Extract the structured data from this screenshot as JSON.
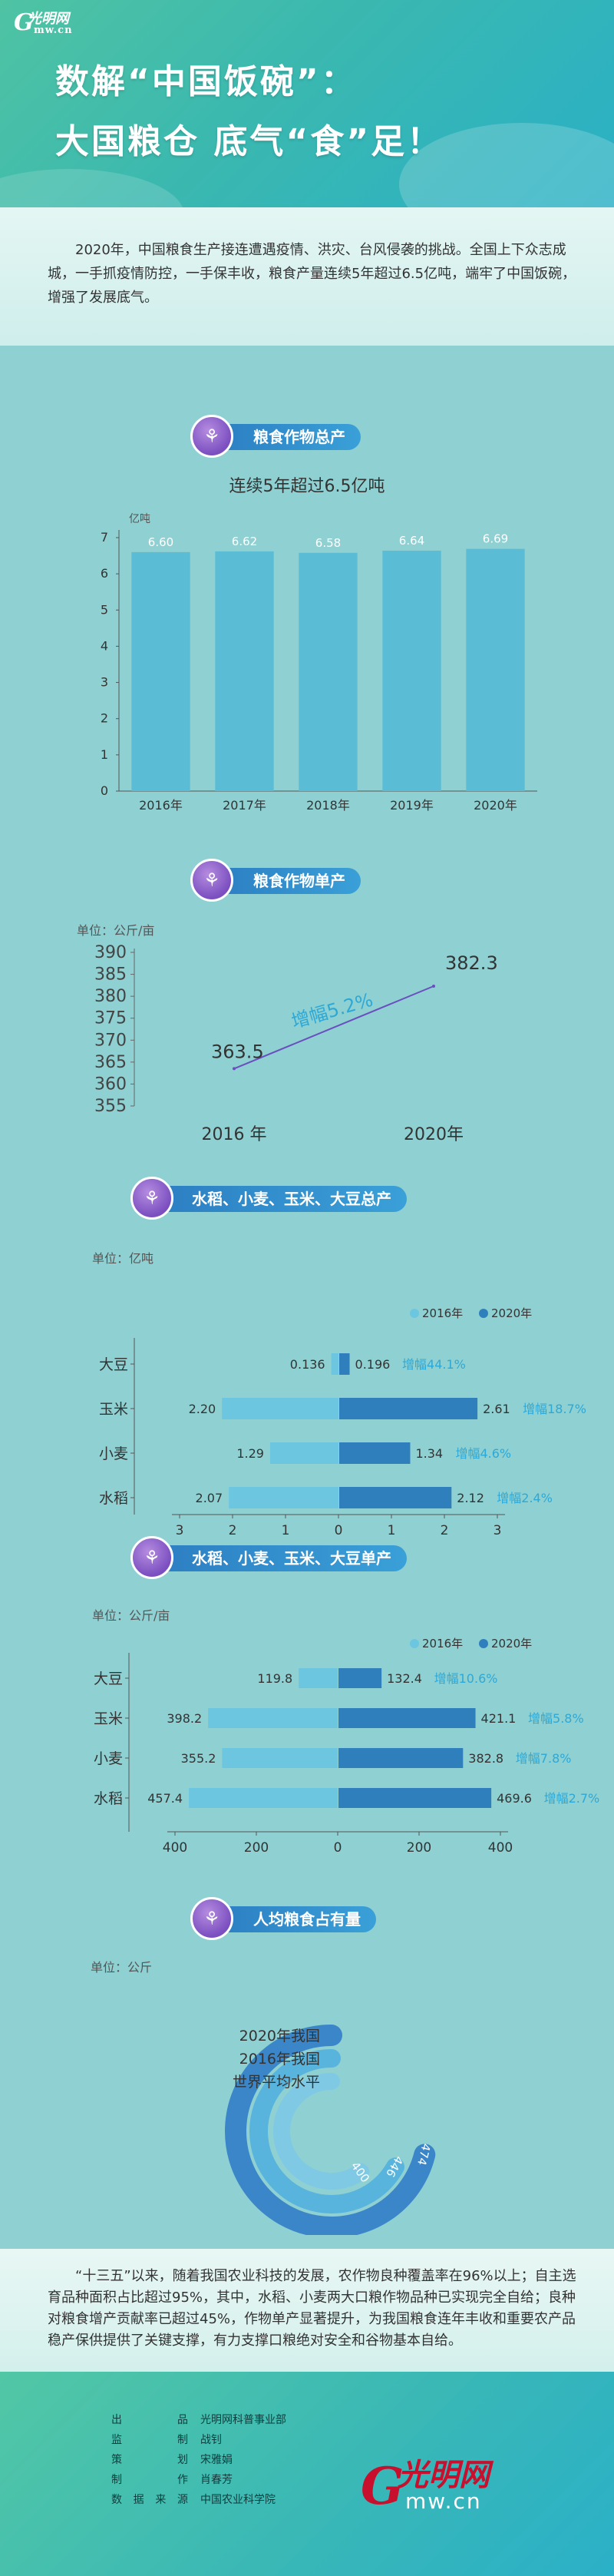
{
  "header": {
    "logo_hand": "光明网",
    "logo_g": "G",
    "logo_mw": "mw.cn",
    "title_line1": "数解“中国饭碗”：",
    "title_line2": "大国粮仓 底气“食”足！"
  },
  "intro": "2020年，中国粮食生产接连遭遇疫情、洪灾、台风侵袭的挑战。全国上下众志成城，一手抓疫情防控，一手保丰收，粮食产量连续5年超过6.5亿吨，端牢了中国饭碗，增强了发展底气。",
  "sections": {
    "s1": "粮食作物总产",
    "s2": "粮食作物单产",
    "s3": "水稻、小麦、玉米、大豆总产",
    "s4": "水稻、小麦、玉米、大豆单产",
    "s5": "人均粮食占有量"
  },
  "colors": {
    "bar": "#5bbcd6",
    "light": "#6cc6e0",
    "dark": "#2f7fbd",
    "growth": "#2ea8d5",
    "pill": "#2c7ec2",
    "purple": "#7b4fc0",
    "ring_dark": "#3a86c8",
    "ring_light": "#58b4dc"
  },
  "icons": {
    "section": "wheat-icon"
  },
  "chart_data": [
    {
      "type": "bar",
      "title": "连续5年超过6.5亿吨",
      "ylabel": "亿吨",
      "categories": [
        "2016年",
        "2017年",
        "2018年",
        "2019年",
        "2020年"
      ],
      "values": [
        6.6,
        6.62,
        6.58,
        6.64,
        6.69
      ],
      "value_labels": [
        "6.60",
        "6.62",
        "6.58",
        "6.64",
        "6.69"
      ],
      "ylim": [
        0,
        7
      ],
      "yticks": [
        "0",
        "1",
        "2",
        "3",
        "4",
        "5",
        "6",
        "7"
      ],
      "grid": false
    },
    {
      "type": "line",
      "unit_label": "单位：公斤/亩",
      "categories": [
        "2016 年",
        "2020年"
      ],
      "values": [
        363.5,
        382.3
      ],
      "value_labels": [
        "363.5",
        "382.3"
      ],
      "annotation": "增幅5.2%",
      "ylim": [
        355,
        390
      ],
      "yticks": [
        "355",
        "360",
        "365",
        "370",
        "375",
        "380",
        "385",
        "390"
      ]
    },
    {
      "type": "bar",
      "orientation": "horizontal-diverging",
      "unit_label": "单位：亿吨",
      "legend": [
        "2016年",
        "2020年"
      ],
      "categories": [
        "大豆",
        "玉米",
        "小麦",
        "水稻"
      ],
      "series": [
        {
          "name": "2016年",
          "values": [
            0.136,
            2.2,
            1.29,
            2.07
          ]
        },
        {
          "name": "2020年",
          "values": [
            0.196,
            2.61,
            1.34,
            2.12
          ]
        }
      ],
      "labels_2016": [
        "0.136",
        "2.20",
        "1.29",
        "2.07"
      ],
      "labels_2020": [
        "0.196",
        "2.61",
        "1.34",
        "2.12"
      ],
      "growth": [
        "增幅44.1%",
        "增幅18.7%",
        "增幅4.6%",
        "增幅2.4%"
      ],
      "xlim": [
        -3,
        3
      ],
      "xticks": [
        "3",
        "2",
        "1",
        "0",
        "1",
        "2",
        "3"
      ]
    },
    {
      "type": "bar",
      "orientation": "horizontal-diverging",
      "unit_label": "单位：公斤/亩",
      "legend": [
        "2016年",
        "2020年"
      ],
      "categories": [
        "大豆",
        "玉米",
        "小麦",
        "水稻"
      ],
      "series": [
        {
          "name": "2016年",
          "values": [
            119.8,
            398.2,
            355.2,
            457.4
          ]
        },
        {
          "name": "2020年",
          "values": [
            132.4,
            421.1,
            382.8,
            469.6
          ]
        }
      ],
      "labels_2016": [
        "119.8",
        "398.2",
        "355.2",
        "457.4"
      ],
      "labels_2020": [
        "132.4",
        "421.1",
        "382.8",
        "469.6"
      ],
      "growth": [
        "增幅10.6%",
        "增幅5.8%",
        "增幅7.8%",
        "增幅2.7%"
      ],
      "xlim": [
        -500,
        500
      ],
      "xticks": [
        "400",
        "200",
        "0",
        "200",
        "400"
      ]
    },
    {
      "type": "radial-bar",
      "unit_label": "单位：公斤",
      "categories": [
        "2020年我国",
        "2016年我国",
        "世界平均水平"
      ],
      "values": [
        474,
        446,
        400
      ],
      "value_labels": [
        "474",
        "446",
        "400"
      ]
    }
  ],
  "outro": "“十三五”以来，随着我国农业科技的发展，农作物良种覆盖率在96%以上；自主选育品种面积占比超过95%，其中，水稻、小麦两大口粮作物品种已实现完全自给；良种对粮食增产贡献率已超过45%，作物单产显著提升，为我国粮食连年丰收和重要农产品稳产保供提供了关键支撑，有力支撑口粮绝对安全和谷物基本自给。",
  "credits": [
    {
      "k": "出品",
      "v": "光明网科普事业部"
    },
    {
      "k": "监制",
      "v": "战钊"
    },
    {
      "k": "策划",
      "v": "宋雅娟"
    },
    {
      "k": "制作",
      "v": "肖春芳"
    },
    {
      "k": "数据来源",
      "v": "中国农业科学院"
    }
  ]
}
